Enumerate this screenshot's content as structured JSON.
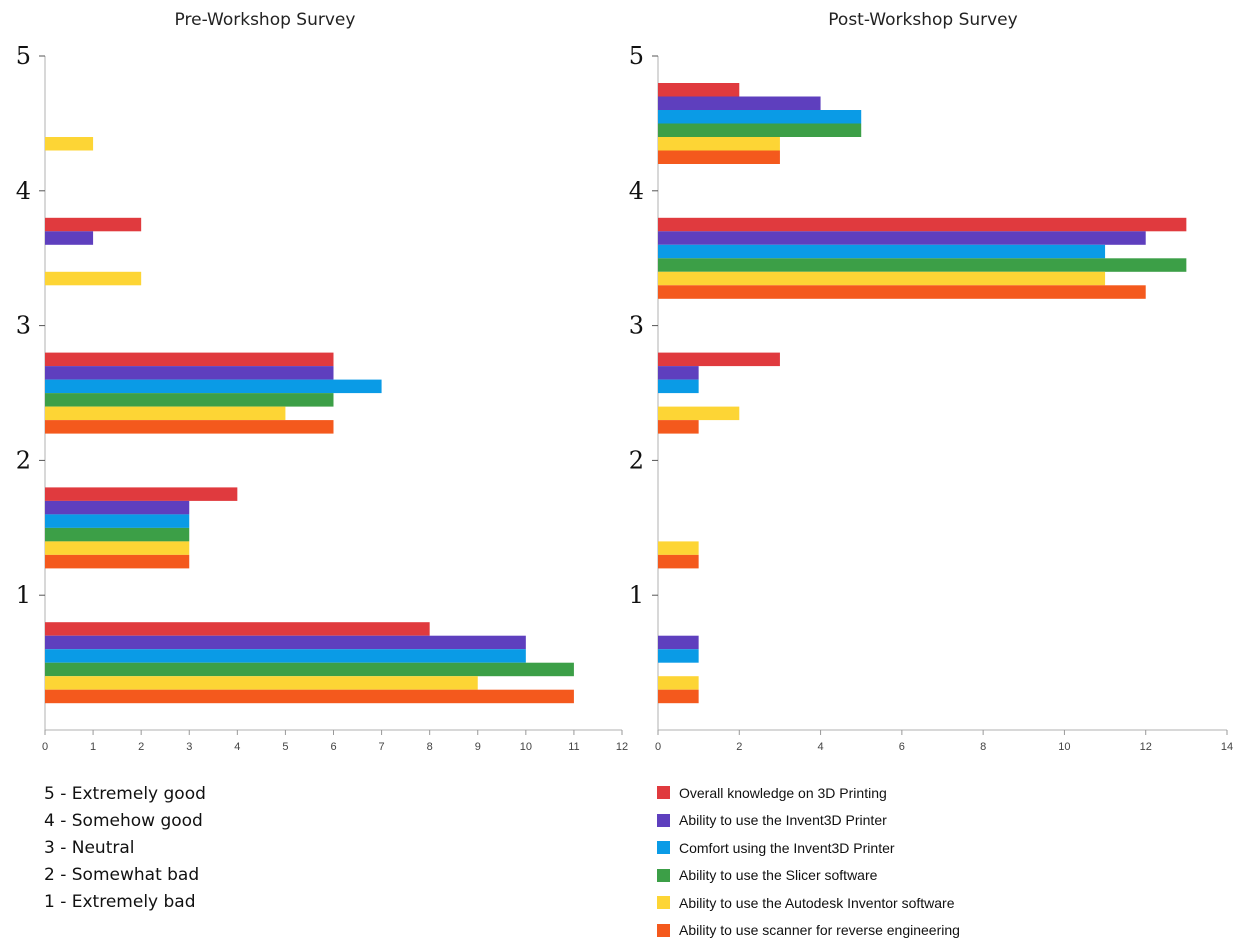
{
  "chart_data": [
    {
      "type": "bar",
      "orientation": "horizontal",
      "title": "Pre-Workshop Survey",
      "xlim": [
        0,
        12
      ],
      "xticks": [
        "0",
        "1",
        "2",
        "3",
        "4",
        "5",
        "6",
        "7",
        "8",
        "9",
        "10",
        "11",
        "12"
      ],
      "yticks": [
        "1",
        "2",
        "3",
        "4",
        "5"
      ],
      "categories": [
        "0-1",
        "1-2",
        "2-3",
        "3-4",
        "4-5"
      ],
      "series": [
        {
          "name": "Overall knowledge on 3D Printing",
          "values": [
            8,
            4,
            6,
            2,
            0
          ]
        },
        {
          "name": "Ability to use the Invent3D Printer",
          "values": [
            10,
            3,
            6,
            1,
            0
          ]
        },
        {
          "name": "Comfort using the Invent3D Printer",
          "values": [
            10,
            3,
            7,
            0,
            0
          ]
        },
        {
          "name": "Ability to use the Slicer software",
          "values": [
            11,
            3,
            6,
            0,
            0
          ]
        },
        {
          "name": "Ability to use the Autodesk Inventor software",
          "values": [
            9,
            3,
            5,
            2,
            1
          ]
        },
        {
          "name": "Ability to use scanner for reverse engineering",
          "values": [
            11,
            3,
            6,
            0,
            0
          ]
        }
      ]
    },
    {
      "type": "bar",
      "orientation": "horizontal",
      "title": "Post-Workshop Survey",
      "xlim": [
        0,
        14
      ],
      "xticks": [
        "0",
        "2",
        "4",
        "6",
        "8",
        "10",
        "12",
        "14"
      ],
      "yticks": [
        "1",
        "2",
        "3",
        "4",
        "5"
      ],
      "categories": [
        "0-1",
        "1-2",
        "2-3",
        "3-4",
        "4-5"
      ],
      "series": [
        {
          "name": "Overall knowledge on 3D Printing",
          "values": [
            0,
            0,
            3,
            13,
            2
          ]
        },
        {
          "name": "Ability to use the Invent3D Printer",
          "values": [
            1,
            0,
            1,
            12,
            4
          ]
        },
        {
          "name": "Comfort using the Invent3D Printer",
          "values": [
            1,
            0,
            1,
            11,
            5
          ]
        },
        {
          "name": "Ability to use the Slicer software",
          "values": [
            0,
            0,
            0,
            13,
            5
          ]
        },
        {
          "name": "Ability to use the Autodesk Inventor software",
          "values": [
            1,
            1,
            2,
            11,
            3
          ]
        },
        {
          "name": "Ability to use scanner for reverse engineering",
          "values": [
            1,
            1,
            1,
            12,
            3
          ]
        }
      ]
    }
  ],
  "colors": [
    "#e03a3e",
    "#5e3fbe",
    "#0a9be6",
    "#3c9f47",
    "#fdd535",
    "#f4591d"
  ],
  "scale_legend": [
    "5 - Extremely good",
    "4 - Somehow good",
    "3 - Neutral",
    "2 - Somewhat bad",
    "1 - Extremely bad"
  ],
  "series_legend": [
    "Overall knowledge on 3D Printing",
    "Ability to use the Invent3D Printer",
    "Comfort using the Invent3D Printer",
    "Ability to use the Slicer software",
    "Ability to use the Autodesk Inventor software",
    "Ability to use scanner for reverse engineering"
  ]
}
